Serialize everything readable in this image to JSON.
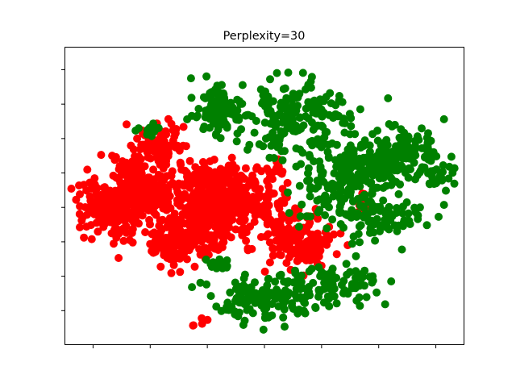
{
  "chart_data": {
    "type": "scatter",
    "title": "Perplexity=30",
    "xlabel": "",
    "ylabel": "",
    "xlim": [
      -70,
      70
    ],
    "ylim": [
      -65,
      65
    ],
    "x_ticks": [
      -60,
      -40,
      -20,
      0,
      20,
      40,
      60,
      80
    ],
    "y_ticks": [
      -50,
      -35,
      -20,
      -5,
      10,
      25,
      40,
      55
    ],
    "tick_labels_visible": false,
    "grid": false,
    "legend": "none",
    "colors": {
      "series_a": "#ff0000",
      "series_b": "#008000"
    },
    "seed": 7,
    "series": [
      {
        "color": "#ff0000",
        "clusters": [
          {
            "cx": -52,
            "cy": -5,
            "sx": 6,
            "sy": 7,
            "n": 220
          },
          {
            "cx": -40,
            "cy": 3,
            "sx": 5,
            "sy": 5,
            "n": 150
          },
          {
            "cx": -38,
            "cy": 22,
            "sx": 4,
            "sy": 5,
            "n": 90
          },
          {
            "cx": -47,
            "cy": 12,
            "sx": 3,
            "sy": 3,
            "n": 40
          },
          {
            "cx": -25,
            "cy": -15,
            "sx": 6,
            "sy": 5,
            "n": 160
          },
          {
            "cx": -33,
            "cy": -22,
            "sx": 4,
            "sy": 4,
            "n": 70
          },
          {
            "cx": -12,
            "cy": -2,
            "sx": 10,
            "sy": 7,
            "n": 330
          },
          {
            "cx": -20,
            "cy": 8,
            "sx": 5,
            "sy": 3,
            "n": 60
          },
          {
            "cx": 12,
            "cy": -20,
            "sx": 6,
            "sy": 5,
            "n": 170
          },
          {
            "cx": 4,
            "cy": 12,
            "sx": 2,
            "sy": 2,
            "n": 12
          },
          {
            "cx": 35,
            "cy": -3,
            "sx": 1,
            "sy": 3,
            "n": 10
          },
          {
            "cx": -22,
            "cy": -55,
            "sx": 2,
            "sy": 1,
            "n": 5
          }
        ]
      },
      {
        "color": "#008000",
        "clusters": [
          {
            "cx": -15,
            "cy": 38,
            "sx": 5,
            "sy": 5,
            "n": 110
          },
          {
            "cx": 5,
            "cy": 35,
            "sx": 5,
            "sy": 8,
            "n": 90
          },
          {
            "cx": 18,
            "cy": 37,
            "sx": 6,
            "sy": 7,
            "n": 70
          },
          {
            "cx": 25,
            "cy": 5,
            "sx": 8,
            "sy": 10,
            "n": 140
          },
          {
            "cx": 40,
            "cy": 15,
            "sx": 8,
            "sy": 7,
            "n": 130
          },
          {
            "cx": 50,
            "cy": 20,
            "sx": 5,
            "sy": 5,
            "n": 80
          },
          {
            "cx": 43,
            "cy": -10,
            "sx": 8,
            "sy": 5,
            "n": 90
          },
          {
            "cx": 0,
            "cy": -45,
            "sx": 10,
            "sy": 5,
            "n": 130
          },
          {
            "cx": 22,
            "cy": -38,
            "sx": 10,
            "sy": 5,
            "n": 90
          },
          {
            "cx": 60,
            "cy": 10,
            "sx": 4,
            "sy": 3,
            "n": 30
          },
          {
            "cx": -40,
            "cy": 30,
            "sx": 2,
            "sy": 2,
            "n": 10
          },
          {
            "cx": -15,
            "cy": -30,
            "sx": 3,
            "sy": 3,
            "n": 15
          }
        ]
      }
    ]
  }
}
